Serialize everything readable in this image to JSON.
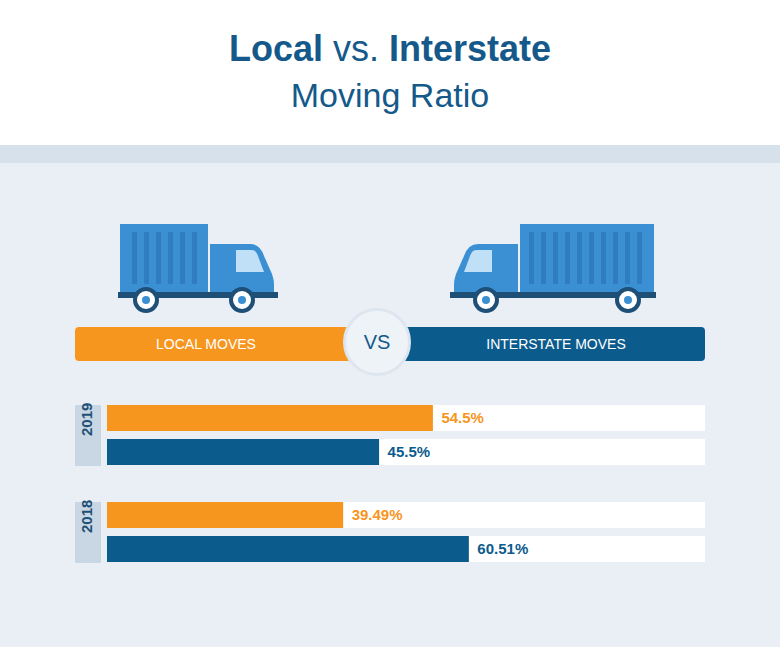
{
  "chart_data": {
    "type": "bar",
    "title": "Local vs. Interstate",
    "subtitle": "Moving Ratio",
    "annotations": [
      "VS"
    ],
    "orientation": "horizontal",
    "data_labels": true,
    "tick_labels": "y",
    "legend": "top",
    "categories": [
      "2019",
      "2018"
    ],
    "xlim": [
      0,
      100
    ],
    "series": [
      {
        "name": "LOCAL MOVES",
        "color": "#f7961e",
        "values": [
          54.5,
          39.49
        ],
        "value_labels": [
          "54.5%",
          "39.49%"
        ]
      },
      {
        "name": "INTERSTATE MOVES",
        "color": "#0c5b8d",
        "values": [
          45.5,
          60.51
        ],
        "value_labels": [
          "45.5%",
          "60.51%"
        ]
      }
    ]
  }
}
